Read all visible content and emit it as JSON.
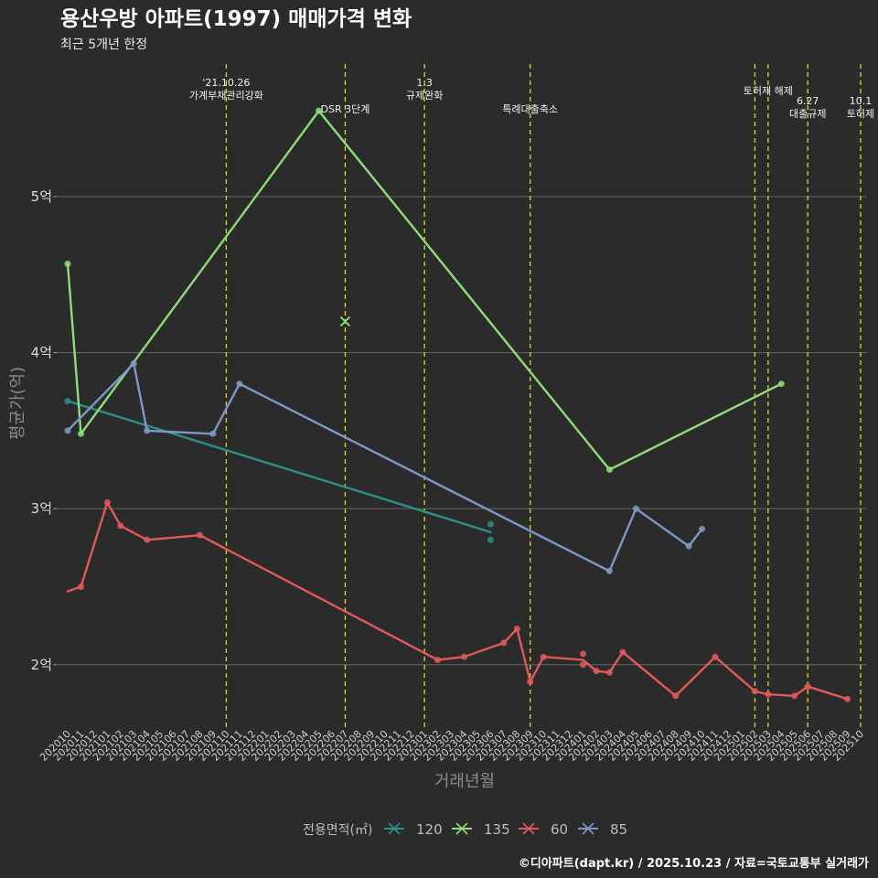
{
  "chart_data": {
    "type": "line",
    "title": "용산우방 아파트(1997) 매매가격 변화",
    "subtitle": "최근 5개년 한정",
    "xlabel": "거래년월",
    "ylabel": "평균가(억)",
    "ylim": [
      1.6,
      5.85
    ],
    "yticks": [
      2,
      3,
      4,
      5
    ],
    "ytick_labels": [
      "2억",
      "3억",
      "4억",
      "5억"
    ],
    "x_categories": [
      "202010",
      "202011",
      "202012",
      "202101",
      "202102",
      "202103",
      "202104",
      "202105",
      "202106",
      "202107",
      "202108",
      "202109",
      "202110",
      "202111",
      "202112",
      "202201",
      "202202",
      "202203",
      "202204",
      "202205",
      "202206",
      "202207",
      "202208",
      "202209",
      "202210",
      "202211",
      "202212",
      "202301",
      "202302",
      "202303",
      "202304",
      "202305",
      "202306",
      "202307",
      "202308",
      "202309",
      "202310",
      "202311",
      "202312",
      "202401",
      "202402",
      "202403",
      "202404",
      "202405",
      "202406",
      "202407",
      "202408",
      "202409",
      "202410",
      "202411",
      "202412",
      "202501",
      "202502",
      "202503",
      "202504",
      "202505",
      "202506",
      "202507",
      "202508",
      "202509",
      "202510"
    ],
    "x_tick_labels": [
      "202010",
      "202011",
      "202012",
      "202101",
      "202102",
      "202103",
      "202104",
      "202105",
      "202106",
      "202107",
      "202108",
      "202109",
      "202110",
      "202111",
      "202112",
      "202201",
      "202202",
      "202203",
      "202204",
      "202205",
      "202206",
      "202207",
      "202208",
      "202209",
      "202210",
      "202211",
      "202212",
      "202301",
      "202302",
      "202303",
      "202304",
      "202305",
      "202306",
      "202307",
      "202308",
      "202309",
      "202310",
      "202311",
      "202312",
      "202401",
      "202402",
      "202403",
      "202404",
      "202405",
      "202406",
      "202407",
      "202408",
      "202409",
      "202410",
      "202411",
      "202412",
      "202501",
      "202502",
      "202503",
      "202504",
      "202505",
      "202506",
      "202507",
      "202508",
      "202509",
      "202510"
    ],
    "legend_title": "전용면적(㎡)",
    "legend_position": "bottom",
    "series": [
      {
        "name": "120",
        "color": "#2a9187",
        "line": [
          [
            "202010",
            3.69
          ],
          [
            "202306",
            2.85
          ]
        ],
        "points": [
          [
            "202010",
            3.69
          ],
          [
            "202306",
            2.9
          ],
          [
            "202306",
            2.8
          ]
        ]
      },
      {
        "name": "135",
        "color": "#8fdc7a",
        "line": [
          [
            "202010",
            4.57
          ],
          [
            "202011",
            3.48
          ],
          [
            "202205",
            5.55
          ],
          [
            "202403",
            3.25
          ],
          [
            "202504",
            3.8
          ]
        ],
        "points": [
          [
            "202010",
            4.57
          ],
          [
            "202011",
            3.48
          ],
          [
            "202205",
            5.55
          ],
          [
            "202403",
            3.25
          ],
          [
            "202504",
            3.8
          ]
        ]
      },
      {
        "name": "60",
        "color": "#e05a5a",
        "line": [
          [
            "202010",
            2.47
          ],
          [
            "202011",
            2.5
          ],
          [
            "202101",
            3.04
          ],
          [
            "202102",
            2.89
          ],
          [
            "202104",
            2.8
          ],
          [
            "202108",
            2.83
          ],
          [
            "202302",
            2.03
          ],
          [
            "202304",
            2.05
          ],
          [
            "202307",
            2.14
          ],
          [
            "202308",
            2.23
          ],
          [
            "202309",
            1.89
          ],
          [
            "202310",
            2.05
          ],
          [
            "202401",
            2.03
          ],
          [
            "202402",
            1.96
          ],
          [
            "202403",
            1.95
          ],
          [
            "202404",
            2.08
          ],
          [
            "202408",
            1.8
          ],
          [
            "202411",
            2.05
          ],
          [
            "202502",
            1.83
          ],
          [
            "202503",
            1.81
          ],
          [
            "202505",
            1.8
          ],
          [
            "202506",
            1.86
          ],
          [
            "202509",
            1.78
          ]
        ],
        "points": [
          [
            "202011",
            2.5
          ],
          [
            "202101",
            3.04
          ],
          [
            "202102",
            2.89
          ],
          [
            "202104",
            2.8
          ],
          [
            "202108",
            2.83
          ],
          [
            "202302",
            2.03
          ],
          [
            "202304",
            2.05
          ],
          [
            "202307",
            2.14
          ],
          [
            "202308",
            2.23
          ],
          [
            "202309",
            1.89
          ],
          [
            "202310",
            2.05
          ],
          [
            "202401",
            2.07
          ],
          [
            "202401",
            2.0
          ],
          [
            "202402",
            1.96
          ],
          [
            "202403",
            1.95
          ],
          [
            "202404",
            2.08
          ],
          [
            "202408",
            1.8
          ],
          [
            "202411",
            2.05
          ],
          [
            "202502",
            1.83
          ],
          [
            "202503",
            1.81
          ],
          [
            "202505",
            1.8
          ],
          [
            "202506",
            1.86
          ],
          [
            "202509",
            1.78
          ]
        ]
      },
      {
        "name": "85",
        "color": "#7c98c7",
        "line": [
          [
            "202010",
            3.5
          ],
          [
            "202103",
            3.93
          ],
          [
            "202104",
            3.5
          ],
          [
            "202109",
            3.48
          ],
          [
            "202111",
            3.8
          ],
          [
            "202403",
            2.6
          ],
          [
            "202405",
            3.0
          ],
          [
            "202409",
            2.76
          ],
          [
            "202410",
            2.87
          ]
        ],
        "points": [
          [
            "202010",
            3.5
          ],
          [
            "202103",
            3.93
          ],
          [
            "202104",
            3.5
          ],
          [
            "202109",
            3.48
          ],
          [
            "202111",
            3.8
          ],
          [
            "202403",
            2.6
          ],
          [
            "202405",
            3.0
          ],
          [
            "202409",
            2.76
          ],
          [
            "202410",
            2.87
          ]
        ]
      }
    ],
    "cross_markers": [
      {
        "series": "120",
        "x": "202207",
        "y": 4.2
      },
      {
        "series": "135",
        "x": "202207",
        "y": 4.2
      }
    ],
    "events": [
      {
        "x": "202110",
        "lines": [
          "'21.10.26",
          "가계부채관리강화"
        ]
      },
      {
        "x": "202207",
        "lines": [
          "DSR 3단계"
        ]
      },
      {
        "x": "202301",
        "lines": [
          "1.3",
          "규제완화"
        ]
      },
      {
        "x": "202309",
        "lines": [
          "특례대출축소"
        ]
      },
      {
        "x": "202502",
        "lines": []
      },
      {
        "x": "202503",
        "lines": [
          "토허제 해제"
        ]
      },
      {
        "x": "202506",
        "lines": [
          "6.27",
          "대출규제"
        ]
      },
      {
        "x": "202510",
        "lines": [
          "10.1",
          "토허제"
        ]
      }
    ],
    "caption": "©디아파트(dapt.kr) / 2025.10.23 / 자료=국토교통부 실거래가"
  }
}
